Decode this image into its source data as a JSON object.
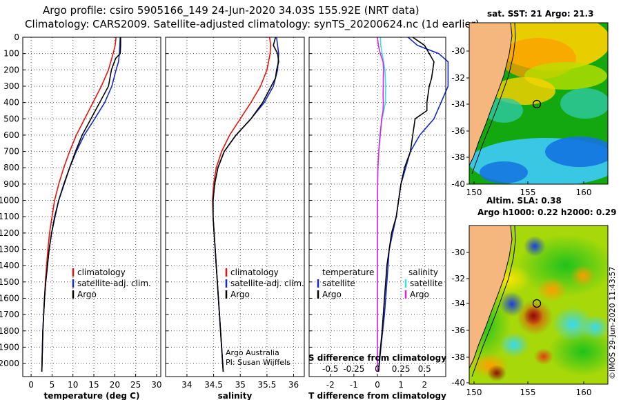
{
  "header": {
    "line1": "Argo profile: csiro 5905166_149 24-Jun-2020 34.03S 155.92E (NRT data)",
    "line2": "Climatology: CARS2009. Satellite-adjusted climatology: synTS_20200624.nc (1d earlier)"
  },
  "colors": {
    "climatology": "#e8140a",
    "satellite": "#1428c8",
    "argo": "#000000",
    "sat_salinity": "#2ee6ea",
    "argo_salinity": "#e61ee6",
    "land": "#f6b77e",
    "grid": "#4f4f4f"
  },
  "chart_data": [
    {
      "type": "line",
      "name": "temperature-panel",
      "xlabel": "temperature (deg C)",
      "ylabel": "depth",
      "xlim": [
        -2,
        31
      ],
      "ylim": [
        2080,
        0
      ],
      "xticks": [
        0,
        5,
        10,
        15,
        20,
        25,
        30
      ],
      "yticks": [
        0,
        100,
        200,
        300,
        400,
        500,
        600,
        700,
        800,
        900,
        1000,
        1100,
        1200,
        1300,
        1400,
        1500,
        1600,
        1700,
        1800,
        1900,
        2000
      ],
      "legend": [
        "climatology",
        "satellite-adj. clim.",
        "Argo"
      ],
      "series": [
        {
          "name": "climatology",
          "color_key": "climatology",
          "points": [
            [
              20.3,
              0
            ],
            [
              20.1,
              50
            ],
            [
              19.6,
              100
            ],
            [
              18.5,
              200
            ],
            [
              16.8,
              300
            ],
            [
              14.8,
              400
            ],
            [
              12.8,
              500
            ],
            [
              10.8,
              600
            ],
            [
              9.2,
              700
            ],
            [
              7.8,
              800
            ],
            [
              6.6,
              900
            ],
            [
              5.6,
              1000
            ],
            [
              5,
              1100
            ],
            [
              4.4,
              1200
            ],
            [
              4,
              1300
            ],
            [
              3.7,
              1400
            ],
            [
              3.4,
              1500
            ],
            [
              3.2,
              1600
            ],
            [
              3,
              1700
            ],
            [
              2.8,
              1800
            ],
            [
              2.7,
              1900
            ],
            [
              2.6,
              2000
            ],
            [
              2.55,
              2050
            ]
          ]
        },
        {
          "name": "satellite-adj. clim.",
          "color_key": "satellite",
          "points": [
            [
              21.3,
              0
            ],
            [
              21.2,
              50
            ],
            [
              21.1,
              100
            ],
            [
              20.9,
              150
            ],
            [
              20.3,
              200
            ],
            [
              19.3,
              300
            ],
            [
              17.6,
              400
            ],
            [
              15.2,
              500
            ],
            [
              12.7,
              600
            ],
            [
              10.8,
              700
            ],
            [
              9.2,
              800
            ],
            [
              7.8,
              900
            ],
            [
              6.6,
              1000
            ],
            [
              5.6,
              1100
            ],
            [
              4.9,
              1200
            ],
            [
              4.3,
              1300
            ],
            [
              3.9,
              1400
            ],
            [
              3.5,
              1500
            ],
            [
              3.2,
              1600
            ],
            [
              3,
              1700
            ],
            [
              2.8,
              1800
            ],
            [
              2.7,
              1900
            ],
            [
              2.6,
              2000
            ],
            [
              2.55,
              2050
            ]
          ]
        },
        {
          "name": "Argo",
          "color_key": "argo",
          "points": [
            [
              21.4,
              0
            ],
            [
              21.4,
              50
            ],
            [
              21.3,
              100
            ],
            [
              20.2,
              130
            ],
            [
              19.2,
              200
            ],
            [
              18.5,
              300
            ],
            [
              16.4,
              400
            ],
            [
              14.3,
              500
            ],
            [
              12.2,
              600
            ],
            [
              10.6,
              700
            ],
            [
              9.2,
              800
            ],
            [
              7.9,
              900
            ],
            [
              6.6,
              1000
            ],
            [
              5.7,
              1100
            ],
            [
              4.9,
              1200
            ],
            [
              4.3,
              1300
            ],
            [
              3.9,
              1400
            ],
            [
              3.5,
              1500
            ],
            [
              3.2,
              1600
            ],
            [
              3,
              1700
            ],
            [
              2.8,
              1800
            ],
            [
              2.7,
              1900
            ],
            [
              2.6,
              2000
            ],
            [
              2.55,
              2050
            ]
          ]
        }
      ]
    },
    {
      "type": "line",
      "name": "salinity-panel",
      "xlabel": "salinity",
      "ylabel": "depth",
      "xlim": [
        33.6,
        36.2
      ],
      "ylim": [
        2080,
        0
      ],
      "xticks": [
        34,
        34.5,
        35,
        35.5,
        36
      ],
      "legend": [
        "climatology",
        "satellite-adj. clim.",
        "Argo"
      ],
      "annotation": [
        "Argo Australia",
        "PI: Susan Wijffels"
      ],
      "series": [
        {
          "name": "climatology",
          "color_key": "climatology",
          "points": [
            [
              35.55,
              0
            ],
            [
              35.57,
              50
            ],
            [
              35.56,
              100
            ],
            [
              35.5,
              200
            ],
            [
              35.38,
              300
            ],
            [
              35.2,
              400
            ],
            [
              35,
              500
            ],
            [
              34.8,
              600
            ],
            [
              34.65,
              700
            ],
            [
              34.55,
              800
            ],
            [
              34.5,
              900
            ],
            [
              34.48,
              1000
            ],
            [
              34.49,
              1100
            ],
            [
              34.51,
              1200
            ],
            [
              34.53,
              1300
            ],
            [
              34.55,
              1400
            ],
            [
              34.57,
              1500
            ],
            [
              34.59,
              1600
            ],
            [
              34.61,
              1700
            ],
            [
              34.63,
              1800
            ],
            [
              34.65,
              1900
            ],
            [
              34.67,
              2000
            ],
            [
              34.68,
              2050
            ]
          ]
        },
        {
          "name": "satellite-adj. clim.",
          "color_key": "satellite",
          "points": [
            [
              35.68,
              0
            ],
            [
              35.7,
              50
            ],
            [
              35.72,
              100
            ],
            [
              35.7,
              200
            ],
            [
              35.62,
              300
            ],
            [
              35.45,
              400
            ],
            [
              35.2,
              500
            ],
            [
              34.92,
              600
            ],
            [
              34.7,
              700
            ],
            [
              34.58,
              800
            ],
            [
              34.52,
              900
            ],
            [
              34.49,
              1000
            ],
            [
              34.49,
              1100
            ],
            [
              34.51,
              1200
            ],
            [
              34.53,
              1300
            ],
            [
              34.55,
              1400
            ],
            [
              34.57,
              1500
            ],
            [
              34.59,
              1600
            ],
            [
              34.61,
              1700
            ],
            [
              34.63,
              1800
            ],
            [
              34.65,
              1900
            ],
            [
              34.67,
              2000
            ],
            [
              34.68,
              2050
            ]
          ]
        },
        {
          "name": "Argo",
          "color_key": "argo",
          "points": [
            [
              35.66,
              0
            ],
            [
              35.62,
              50
            ],
            [
              35.7,
              100
            ],
            [
              35.72,
              150
            ],
            [
              35.68,
              200
            ],
            [
              35.66,
              250
            ],
            [
              35.58,
              300
            ],
            [
              35.42,
              400
            ],
            [
              35.2,
              500
            ],
            [
              34.92,
              600
            ],
            [
              34.7,
              700
            ],
            [
              34.58,
              800
            ],
            [
              34.52,
              900
            ],
            [
              34.49,
              1000
            ],
            [
              34.49,
              1100
            ],
            [
              34.51,
              1200
            ],
            [
              34.53,
              1300
            ],
            [
              34.55,
              1400
            ],
            [
              34.57,
              1500
            ],
            [
              34.59,
              1600
            ],
            [
              34.61,
              1700
            ],
            [
              34.63,
              1800
            ],
            [
              34.65,
              1900
            ],
            [
              34.67,
              2000
            ],
            [
              34.68,
              2050
            ]
          ]
        }
      ]
    },
    {
      "type": "line",
      "name": "difference-panel",
      "xlabel": "T difference from climatology",
      "xlabel_top": "S difference from climatology",
      "xlim": [
        -2.9,
        2.9
      ],
      "ylim": [
        2080,
        0
      ],
      "xticks": [
        -2,
        -1,
        0,
        1,
        2
      ],
      "xticks_s": [
        -0.5,
        -0.25,
        0,
        0.25,
        0.5
      ],
      "legend_temperature_title": "temperature",
      "legend_salinity_title": "salinity",
      "legend_temperature": [
        "satellite",
        "Argo"
      ],
      "legend_salinity": [
        "satellite",
        "Argo"
      ],
      "series": [
        {
          "name": "T satellite",
          "color_key": "satellite",
          "points": [
            [
              1.3,
              0
            ],
            [
              1.7,
              50
            ],
            [
              2.6,
              100
            ],
            [
              3,
              150
            ],
            [
              3,
              300
            ],
            [
              2.4,
              500
            ],
            [
              1.8,
              600
            ],
            [
              1.4,
              700
            ],
            [
              1.2,
              800
            ],
            [
              1,
              900
            ],
            [
              0.8,
              1100
            ],
            [
              0.5,
              1300
            ],
            [
              0.4,
              1500
            ],
            [
              0.3,
              1700
            ],
            [
              0.15,
              1900
            ],
            [
              0.05,
              2050
            ]
          ]
        },
        {
          "name": "T Argo",
          "color_key": "argo",
          "points": [
            [
              1.5,
              0
            ],
            [
              2,
              50
            ],
            [
              2.2,
              100
            ],
            [
              2.4,
              150
            ],
            [
              2.3,
              250
            ],
            [
              2.2,
              300
            ],
            [
              2.1,
              400
            ],
            [
              2.1,
              450
            ],
            [
              1.6,
              500
            ],
            [
              1.5,
              600
            ],
            [
              1.4,
              700
            ],
            [
              1.15,
              800
            ],
            [
              1,
              900
            ],
            [
              0.9,
              1000
            ],
            [
              0.8,
              1100
            ],
            [
              0.6,
              1200
            ],
            [
              0.5,
              1300
            ],
            [
              0.4,
              1400
            ],
            [
              0.3,
              1600
            ],
            [
              0.2,
              1800
            ],
            [
              0.1,
              1950
            ],
            [
              0.05,
              2050
            ]
          ]
        },
        {
          "name": "S satellite",
          "color_key": "sat_salinity",
          "points": [
            [
              0.13,
              0
            ],
            [
              0.14,
              50
            ],
            [
              0.2,
              100
            ],
            [
              0.32,
              200
            ],
            [
              0.35,
              300
            ],
            [
              0.34,
              400
            ],
            [
              0.2,
              500
            ],
            [
              0.1,
              600
            ],
            [
              0.05,
              700
            ],
            [
              0.02,
              800
            ],
            [
              0.01,
              900
            ],
            [
              0,
              1100
            ],
            [
              0,
              1500
            ],
            [
              0,
              2050
            ]
          ]
        },
        {
          "name": "S Argo",
          "color_key": "argo_salinity",
          "points": [
            [
              0,
              0
            ],
            [
              0.04,
              50
            ],
            [
              0.12,
              100
            ],
            [
              0.24,
              150
            ],
            [
              0.26,
              200
            ],
            [
              0.25,
              250
            ],
            [
              0.25,
              300
            ],
            [
              0.24,
              350
            ],
            [
              0.25,
              400
            ],
            [
              0.24,
              450
            ],
            [
              0.18,
              500
            ],
            [
              0.12,
              600
            ],
            [
              0.06,
              700
            ],
            [
              0.02,
              800
            ],
            [
              0.01,
              900
            ],
            [
              0,
              1100
            ],
            [
              0,
              1500
            ],
            [
              0,
              2050
            ]
          ]
        }
      ]
    }
  ],
  "maps": {
    "sst": {
      "title": "sat. SST: 21 Argo: 21.3",
      "xticks": [
        "150",
        "155",
        "160"
      ],
      "yticks": [
        "-30",
        "-32",
        "-34",
        "-36",
        "-38",
        "-40"
      ]
    },
    "sla": {
      "title_line1": "Altim. SLA: 0.38",
      "title_line2": "Argo h1000: 0.22 h2000: 0.29",
      "xticks": [
        "150",
        "155",
        "160"
      ],
      "yticks": [
        "-30",
        "-32",
        "-34",
        "-36",
        "-38",
        "-40"
      ]
    }
  },
  "credit": "©IMOS 29-Jun-2020 11:43:57"
}
